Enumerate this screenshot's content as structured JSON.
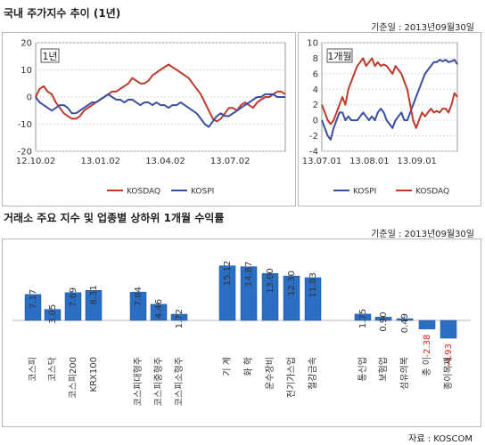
{
  "header": {
    "title1": "국내 주가지수 추이 (1년)",
    "date1": "기준일 : 2013년09월30일",
    "title2": "거래소 주요 지수 및 업종별 상하위 1개월 수익률",
    "date2": "기준일 : 2013년09월30일",
    "source": "자료 : KOSCOM"
  },
  "colors": {
    "kosdaq": "#c0392b",
    "kospi": "#3a4fa0",
    "bar": "#2a6fc4",
    "neg_label": "#e02020"
  },
  "chart_data": [
    {
      "type": "line",
      "badge": "1년",
      "ylim": [
        -20,
        20
      ],
      "yticks": [
        20,
        10,
        0,
        -10,
        -20
      ],
      "x_labels": [
        "12.10.02",
        "13.01.02",
        "13.04.02",
        "13.07.02"
      ],
      "series": [
        {
          "name": "KOSDAQ",
          "color": "#c0392b",
          "values": [
            0,
            3,
            4,
            2,
            1,
            -2,
            -4,
            -6,
            -7,
            -8,
            -8,
            -7,
            -5,
            -4,
            -3,
            -2,
            -1,
            0,
            1,
            2,
            2,
            3,
            4,
            5,
            7,
            6,
            5,
            5,
            6,
            8,
            9,
            10,
            11,
            12,
            11,
            10,
            9,
            8,
            7,
            5,
            3,
            1,
            -2,
            -5,
            -8,
            -9,
            -8,
            -6,
            -4,
            -4,
            -5,
            -3,
            -2,
            -3,
            -4,
            -2,
            -1,
            0,
            0,
            1,
            2,
            2,
            1
          ]
        },
        {
          "name": "KOSPI",
          "color": "#3a4fa0",
          "values": [
            0,
            -2,
            -3,
            -4,
            -5,
            -4,
            -3,
            -3,
            -4,
            -6,
            -6,
            -5,
            -4,
            -3,
            -2,
            -2,
            -1,
            0,
            1,
            0,
            -1,
            -1,
            -2,
            -1,
            -1,
            -2,
            -3,
            -2,
            -2,
            -3,
            -2,
            -3,
            -3,
            -4,
            -3,
            -3,
            -2,
            -3,
            -4,
            -5,
            -6,
            -8,
            -10,
            -11,
            -9,
            -7,
            -6,
            -7,
            -7,
            -6,
            -5,
            -4,
            -3,
            -2,
            -1,
            0,
            0,
            1,
            1,
            1,
            0,
            0,
            0
          ]
        }
      ]
    },
    {
      "type": "line",
      "badge": "1개월",
      "ylim": [
        -4,
        10
      ],
      "yticks": [
        10,
        8,
        6,
        4,
        2,
        0,
        -2,
        -4
      ],
      "x_labels": [
        "13.07.01",
        "13.08.01",
        "13.09.01"
      ],
      "series": [
        {
          "name": "KOSPI",
          "color": "#3a4fa0",
          "values": [
            0,
            -1,
            -2,
            -2.5,
            -1,
            0,
            1,
            1,
            0,
            0.5,
            0,
            0,
            0,
            0.5,
            1,
            0.5,
            0,
            0.5,
            0,
            1,
            1.5,
            1,
            0,
            -0.5,
            -1,
            0,
            0.5,
            1,
            0,
            0,
            1,
            2,
            3,
            4,
            5,
            6,
            6.5,
            7,
            7.5,
            7.5,
            7.8,
            7.6,
            7.8,
            7.5,
            7.6,
            7.8,
            7.2
          ]
        },
        {
          "name": "KOSDAQ",
          "color": "#c0392b",
          "values": [
            2,
            1,
            0,
            -0.5,
            0,
            1,
            2,
            3,
            2,
            4,
            5,
            6,
            7,
            7.5,
            8,
            7,
            7.5,
            8,
            7,
            7.5,
            7,
            7.2,
            7,
            6.5,
            6,
            7,
            6.5,
            6,
            5,
            4,
            2,
            0,
            -1,
            0,
            1,
            0.5,
            1,
            1.5,
            1,
            1.2,
            1,
            1.5,
            1.5,
            1,
            2,
            3.5,
            3
          ]
        }
      ]
    },
    {
      "type": "bar",
      "groups": [
        {
          "categories": [
            "코스피",
            "코스닥",
            "코스피200",
            "KRX100"
          ],
          "values": [
            7.17,
            3.05,
            7.69,
            8.31
          ]
        },
        {
          "categories": [
            "코스피대형주",
            "코스피중형주",
            "코스피소형주"
          ],
          "values": [
            7.84,
            4.46,
            1.72
          ]
        },
        {
          "categories": [
            "기 계",
            "화 학",
            "운수장비",
            "전기가스업",
            "철강금속"
          ],
          "values": [
            15.12,
            14.87,
            13.0,
            12.3,
            11.83
          ]
        },
        {
          "categories": [
            "통신업",
            "보험업",
            "섬유의복",
            "종 이",
            "종이목재"
          ],
          "values": [
            1.75,
            0.9,
            0.49,
            -2.38,
            -4.93
          ]
        }
      ],
      "value_labels": [
        "7.17",
        "3.05",
        "7.69",
        "8.31",
        "7.84",
        "4.46",
        "1.72",
        "15.12",
        "14.87",
        "13.00",
        "12.30",
        "11.83",
        "1.75",
        "0.90",
        "0.49",
        "-2.38",
        "-4.93"
      ]
    }
  ]
}
